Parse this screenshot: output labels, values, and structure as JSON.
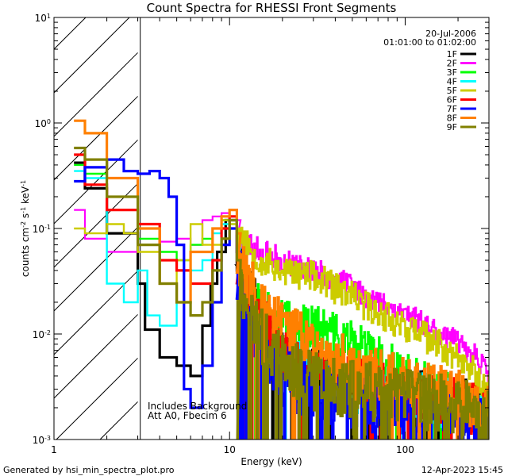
{
  "chart_data": {
    "type": "line",
    "title": "Count Spectra for RHESSI Front Segments",
    "xlabel": "Energy (keV)",
    "ylabel": "counts cm⁻² s⁻¹ keV⁻¹",
    "xscale": "log",
    "yscale": "log",
    "xlim": [
      1,
      300
    ],
    "ylim": [
      0.001,
      10
    ],
    "x_major_ticks": [
      1,
      10,
      100
    ],
    "x_tick_labels": [
      "1",
      "10",
      "100"
    ],
    "y_major_ticks": [
      0.001,
      0.01,
      0.1,
      1,
      10
    ],
    "y_tick_labels": [
      {
        "base": "10",
        "exp": "-3"
      },
      {
        "base": "10",
        "exp": "-2"
      },
      {
        "base": "10",
        "exp": "-1"
      },
      {
        "base": "10",
        "exp": "0"
      },
      {
        "base": "10",
        "exp": "1"
      }
    ],
    "excluded_region": {
      "x_from": 1,
      "x_to": 3,
      "pattern": "hatched"
    },
    "date": "20-Jul-2006",
    "time_range": "01:01:00 to 01:02:00",
    "annotations": [
      "Includes Background",
      "Att A0, Fbecim 6"
    ],
    "series": [
      {
        "name": "1F",
        "color": "#000000",
        "width": 3.2,
        "seed": 11,
        "lowE": [
          [
            1.3,
            0.42
          ],
          [
            1.5,
            0.24
          ],
          [
            2,
            0.09
          ],
          [
            3,
            0.03
          ],
          [
            3.3,
            0.011
          ],
          [
            4,
            0.006
          ],
          [
            5,
            0.005
          ],
          [
            6,
            0.004
          ],
          [
            7,
            0.012
          ],
          [
            7.8,
            0.03
          ],
          [
            8.5,
            0.06
          ],
          [
            9.5,
            0.12
          ],
          [
            11,
            0.04
          ]
        ],
        "tail": {
          "x": [
            11,
            15,
            20,
            30,
            50,
            70,
            100,
            150,
            200,
            260,
            290
          ],
          "y": [
            0.06,
            0.015,
            0.006,
            0.004,
            0.0035,
            0.003,
            0.0028,
            0.0024,
            0.0022,
            0.0019,
            0.0015
          ]
        },
        "jitter": 0.25,
        "dropouts": 0.08
      },
      {
        "name": "2F",
        "color": "#ff00ff",
        "width": 2.2,
        "seed": 23,
        "lowE": [
          [
            1.3,
            0.15
          ],
          [
            1.5,
            0.08
          ],
          [
            2,
            0.06
          ],
          [
            3,
            0.07
          ],
          [
            4,
            0.075
          ],
          [
            5,
            0.08
          ],
          [
            6,
            0.07
          ],
          [
            7,
            0.12
          ],
          [
            8,
            0.13
          ],
          [
            9,
            0.14
          ],
          [
            10,
            0.15
          ],
          [
            11,
            0.12
          ]
        ],
        "tail": {
          "x": [
            11,
            15,
            20,
            30,
            50,
            70,
            100,
            150,
            200,
            260,
            290
          ],
          "y": [
            0.09,
            0.06,
            0.05,
            0.04,
            0.028,
            0.02,
            0.016,
            0.011,
            0.008,
            0.006,
            0.004
          ]
        },
        "jitter": 0.12,
        "dropouts": 0
      },
      {
        "name": "3F",
        "color": "#00ff00",
        "width": 2.4,
        "seed": 37,
        "lowE": [
          [
            1.3,
            0.4
          ],
          [
            1.5,
            0.33
          ],
          [
            2,
            0.15
          ],
          [
            3,
            0.08
          ],
          [
            4,
            0.06
          ],
          [
            5,
            0.05
          ],
          [
            6,
            0.07
          ],
          [
            7,
            0.08
          ],
          [
            8,
            0.1
          ],
          [
            9,
            0.12
          ],
          [
            10,
            0.1
          ],
          [
            11,
            0.08
          ]
        ],
        "tail": {
          "x": [
            11,
            15,
            20,
            30,
            50,
            70,
            100,
            150,
            200,
            260,
            290
          ],
          "y": [
            0.05,
            0.02,
            0.013,
            0.012,
            0.008,
            0.006,
            0.004,
            0.003,
            0.0025,
            0.002,
            0.0018
          ]
        },
        "jitter": 0.22,
        "dropouts": 0.02
      },
      {
        "name": "4F",
        "color": "#00ffff",
        "width": 2.4,
        "seed": 41,
        "lowE": [
          [
            1.3,
            0.35
          ],
          [
            1.5,
            0.3
          ],
          [
            2,
            0.03
          ],
          [
            2.5,
            0.02
          ],
          [
            3,
            0.04
          ],
          [
            3.4,
            0.015
          ],
          [
            4,
            0.012
          ],
          [
            5,
            0.02
          ],
          [
            6,
            0.04
          ],
          [
            7,
            0.05
          ],
          [
            8,
            0.09
          ],
          [
            9,
            0.11
          ],
          [
            11,
            0.07
          ]
        ],
        "tail": {
          "x": [
            11,
            15,
            20,
            30,
            50,
            70,
            100,
            150,
            200,
            260,
            290
          ],
          "y": [
            0.04,
            0.01,
            0.006,
            0.004,
            0.003,
            0.003,
            0.0028,
            0.0024,
            0.002,
            0.0018,
            0.0015
          ]
        },
        "jitter": 0.25,
        "dropouts": 0.04
      },
      {
        "name": "5F",
        "color": "#cccc00",
        "width": 2.4,
        "seed": 53,
        "lowE": [
          [
            1.3,
            0.1
          ],
          [
            1.5,
            0.09
          ],
          [
            2,
            0.11
          ],
          [
            2.5,
            0.09
          ],
          [
            3,
            0.06
          ],
          [
            4,
            0.03
          ],
          [
            5,
            0.05
          ],
          [
            6,
            0.11
          ],
          [
            7,
            0.07
          ],
          [
            8,
            0.07
          ],
          [
            9,
            0.12
          ],
          [
            10,
            0.11
          ],
          [
            11,
            0.1
          ]
        ],
        "tail": {
          "x": [
            11,
            15,
            20,
            30,
            50,
            70,
            100,
            150,
            200,
            260,
            290
          ],
          "y": [
            0.09,
            0.05,
            0.04,
            0.035,
            0.022,
            0.016,
            0.012,
            0.008,
            0.006,
            0.004,
            0.0032
          ]
        },
        "jitter": 0.15,
        "dropouts": 0
      },
      {
        "name": "6F",
        "color": "#ff0000",
        "width": 3.2,
        "seed": 67,
        "lowE": [
          [
            1.3,
            0.5
          ],
          [
            1.5,
            0.26
          ],
          [
            2,
            0.15
          ],
          [
            3,
            0.11
          ],
          [
            4,
            0.05
          ],
          [
            5,
            0.04
          ],
          [
            6,
            0.03
          ],
          [
            7,
            0.03
          ],
          [
            8,
            0.05
          ],
          [
            9,
            0.1
          ],
          [
            10,
            0.13
          ],
          [
            11,
            0.06
          ]
        ],
        "tail": {
          "x": [
            11,
            15,
            20,
            30,
            50,
            70,
            100,
            150,
            200,
            260,
            290
          ],
          "y": [
            0.04,
            0.015,
            0.006,
            0.004,
            0.0035,
            0.003,
            0.0027,
            0.0024,
            0.0021,
            0.0019,
            0.0016
          ]
        },
        "jitter": 0.25,
        "dropouts": 0.06
      },
      {
        "name": "7F",
        "color": "#0000ff",
        "width": 3.2,
        "seed": 79,
        "lowE": [
          [
            1.3,
            0.28
          ],
          [
            1.5,
            0.38
          ],
          [
            2,
            0.45
          ],
          [
            2.5,
            0.35
          ],
          [
            3,
            0.33
          ],
          [
            3.5,
            0.35
          ],
          [
            4,
            0.3
          ],
          [
            4.5,
            0.2
          ],
          [
            5,
            0.07
          ],
          [
            5.5,
            0.003
          ],
          [
            6,
            0.002
          ],
          [
            7,
            0.005
          ],
          [
            8,
            0.02
          ],
          [
            9,
            0.07
          ],
          [
            10,
            0.1
          ],
          [
            11,
            0.06
          ]
        ],
        "tail": {
          "x": [
            11,
            15,
            20,
            30,
            50,
            70,
            100,
            150,
            200,
            260,
            290
          ],
          "y": [
            0.03,
            0.008,
            0.004,
            0.003,
            0.0025,
            0.0022,
            0.002,
            0.0018,
            0.0016,
            0.0015,
            0.0013
          ]
        },
        "jitter": 0.3,
        "dropouts": 0.1
      },
      {
        "name": "8F",
        "color": "#ff8000",
        "width": 3.2,
        "seed": 83,
        "lowE": [
          [
            1.3,
            1.05
          ],
          [
            1.5,
            0.8
          ],
          [
            2,
            0.3
          ],
          [
            3,
            0.1
          ],
          [
            4,
            0.03
          ],
          [
            5,
            0.02
          ],
          [
            6,
            0.06
          ],
          [
            7,
            0.06
          ],
          [
            8,
            0.1
          ],
          [
            9,
            0.13
          ],
          [
            10,
            0.15
          ],
          [
            11,
            0.09
          ]
        ],
        "tail": {
          "x": [
            11,
            15,
            20,
            30,
            50,
            70,
            100,
            150,
            200,
            260,
            290
          ],
          "y": [
            0.05,
            0.02,
            0.012,
            0.008,
            0.005,
            0.004,
            0.0035,
            0.003,
            0.0026,
            0.0022,
            0.0018
          ]
        },
        "jitter": 0.25,
        "dropouts": 0.04
      },
      {
        "name": "9F",
        "color": "#808000",
        "width": 3.2,
        "seed": 97,
        "lowE": [
          [
            1.3,
            0.58
          ],
          [
            1.5,
            0.45
          ],
          [
            2,
            0.2
          ],
          [
            3,
            0.07
          ],
          [
            4,
            0.03
          ],
          [
            5,
            0.02
          ],
          [
            6,
            0.015
          ],
          [
            7,
            0.02
          ],
          [
            8,
            0.04
          ],
          [
            9,
            0.08
          ],
          [
            10,
            0.12
          ],
          [
            11,
            0.05
          ]
        ],
        "tail": {
          "x": [
            11,
            15,
            20,
            30,
            50,
            70,
            100,
            150,
            200,
            260,
            290
          ],
          "y": [
            0.03,
            0.01,
            0.005,
            0.0035,
            0.003,
            0.0028,
            0.0025,
            0.0022,
            0.002,
            0.0018,
            0.0015
          ]
        },
        "jitter": 0.28,
        "dropouts": 0.1
      }
    ]
  },
  "footer": {
    "left": "Generated by hsi_min_spectra_plot.pro",
    "right": "12-Apr-2023 15:45"
  }
}
